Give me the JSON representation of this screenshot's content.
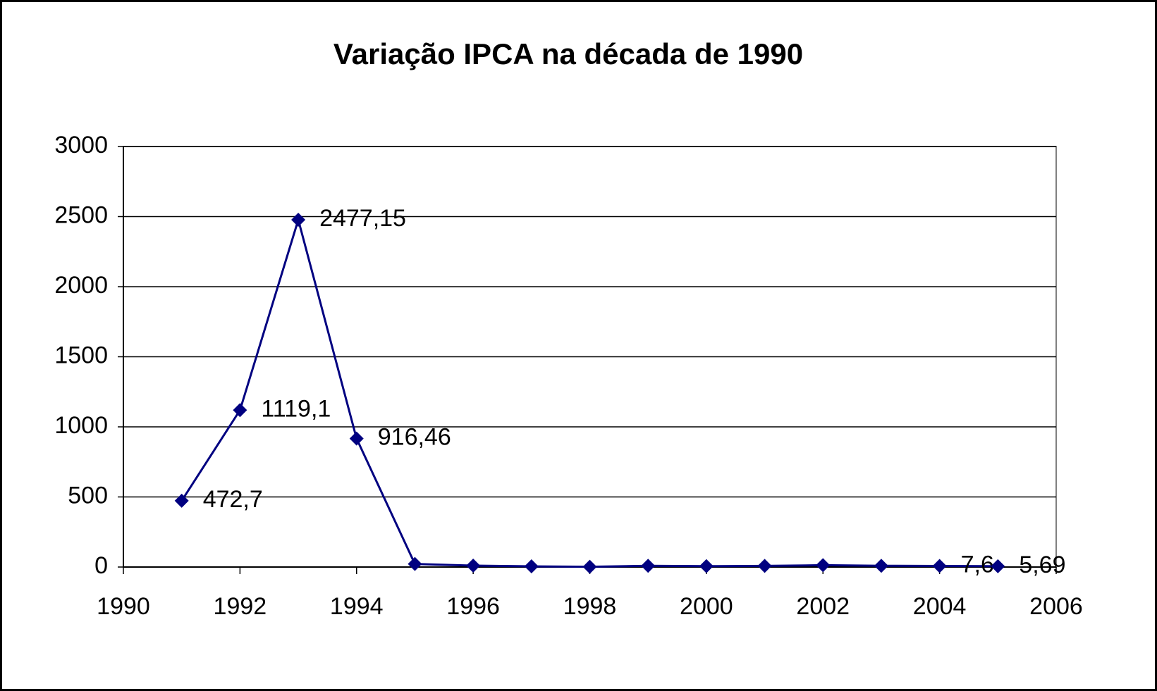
{
  "chart_data": {
    "type": "line",
    "title": "Variação IPCA na década de 1990",
    "x": [
      1991,
      1992,
      1993,
      1994,
      1995,
      1996,
      1997,
      1998,
      1999,
      2000,
      2001,
      2002,
      2003,
      2004,
      2005
    ],
    "series": [
      {
        "name": "IPCA",
        "color": "#000080",
        "values": [
          472.7,
          1119.1,
          2477.15,
          916.46,
          22,
          10,
          5,
          2,
          9,
          6,
          8,
          13,
          9,
          7.6,
          5.69
        ],
        "value_labels": [
          "472,7",
          "1119,1",
          "2477,15",
          "916,46",
          null,
          null,
          null,
          null,
          null,
          null,
          null,
          null,
          null,
          "7,6",
          "5,69"
        ]
      }
    ],
    "xlim": [
      1990,
      2006
    ],
    "xticks": [
      1990,
      1992,
      1994,
      1996,
      1998,
      2000,
      2002,
      2004,
      2006
    ],
    "ylim": [
      0,
      3000
    ],
    "yticks": [
      0,
      500,
      1000,
      1500,
      2000,
      2500,
      3000
    ],
    "grid": true
  }
}
